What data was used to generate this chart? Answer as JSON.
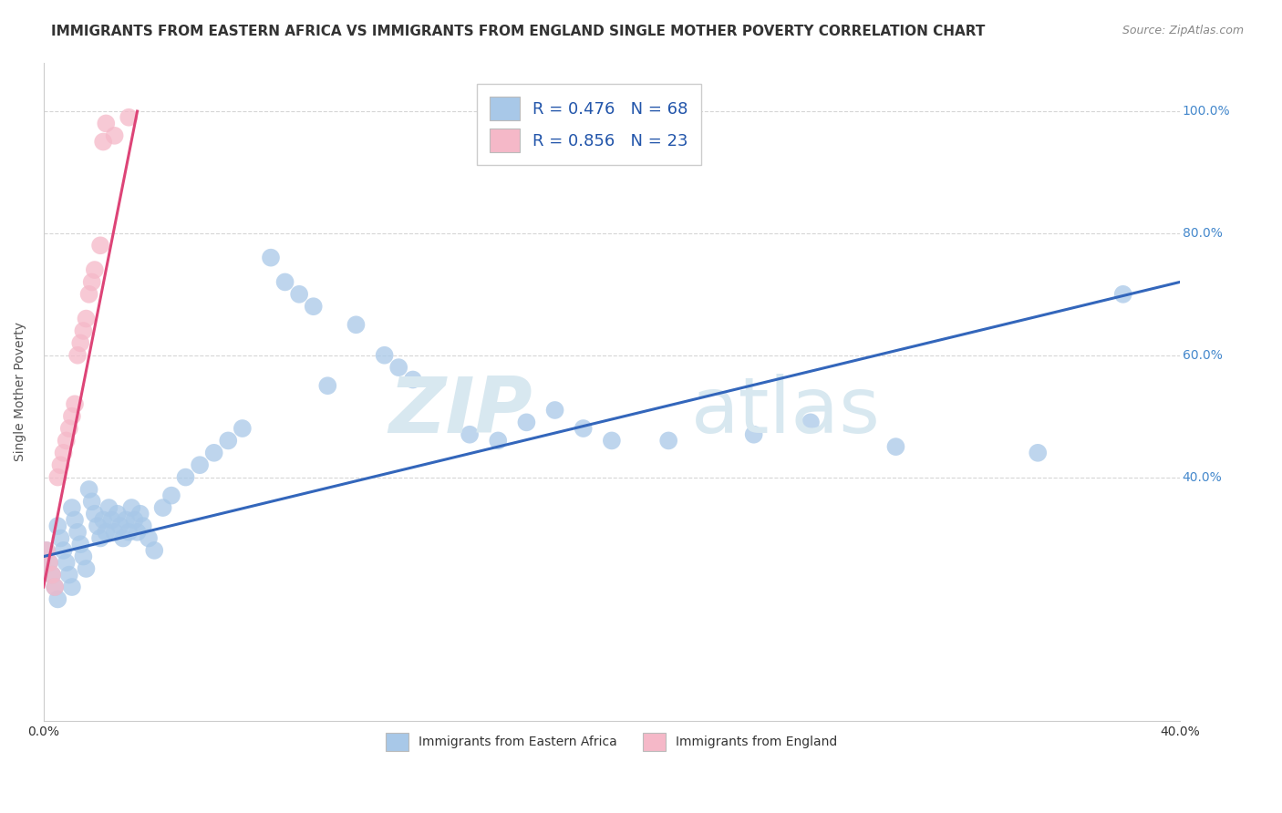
{
  "title": "IMMIGRANTS FROM EASTERN AFRICA VS IMMIGRANTS FROM ENGLAND SINGLE MOTHER POVERTY CORRELATION CHART",
  "source": "Source: ZipAtlas.com",
  "ylabel": "Single Mother Poverty",
  "xlim": [
    0.0,
    0.4
  ],
  "ylim": [
    0.0,
    1.08
  ],
  "blue_color": "#a8c8e8",
  "pink_color": "#f5b8c8",
  "blue_line_color": "#3366bb",
  "pink_line_color": "#dd4477",
  "background_color": "#ffffff",
  "grid_color": "#cccccc",
  "title_fontsize": 11,
  "axis_label_fontsize": 10,
  "tick_fontsize": 10,
  "legend_fontsize": 13,
  "blue_scatter_x": [
    0.001,
    0.002,
    0.003,
    0.004,
    0.005,
    0.005,
    0.006,
    0.007,
    0.008,
    0.009,
    0.01,
    0.01,
    0.011,
    0.012,
    0.013,
    0.014,
    0.015,
    0.016,
    0.017,
    0.018,
    0.019,
    0.02,
    0.021,
    0.022,
    0.023,
    0.024,
    0.025,
    0.026,
    0.027,
    0.028,
    0.029,
    0.03,
    0.031,
    0.032,
    0.033,
    0.034,
    0.035,
    0.037,
    0.039,
    0.042,
    0.045,
    0.05,
    0.055,
    0.06,
    0.065,
    0.07,
    0.08,
    0.085,
    0.09,
    0.095,
    0.1,
    0.11,
    0.12,
    0.125,
    0.13,
    0.15,
    0.16,
    0.17,
    0.18,
    0.19,
    0.2,
    0.22,
    0.25,
    0.27,
    0.3,
    0.35,
    0.38
  ],
  "blue_scatter_y": [
    0.28,
    0.26,
    0.24,
    0.22,
    0.2,
    0.32,
    0.3,
    0.28,
    0.26,
    0.24,
    0.22,
    0.35,
    0.33,
    0.31,
    0.29,
    0.27,
    0.25,
    0.38,
    0.36,
    0.34,
    0.32,
    0.3,
    0.33,
    0.31,
    0.35,
    0.33,
    0.31,
    0.34,
    0.32,
    0.3,
    0.33,
    0.31,
    0.35,
    0.33,
    0.31,
    0.34,
    0.32,
    0.3,
    0.28,
    0.35,
    0.37,
    0.4,
    0.42,
    0.44,
    0.46,
    0.48,
    0.76,
    0.72,
    0.7,
    0.68,
    0.55,
    0.65,
    0.6,
    0.58,
    0.56,
    0.47,
    0.46,
    0.49,
    0.51,
    0.48,
    0.46,
    0.46,
    0.47,
    0.49,
    0.45,
    0.44,
    0.7
  ],
  "pink_scatter_x": [
    0.001,
    0.002,
    0.003,
    0.004,
    0.005,
    0.006,
    0.007,
    0.008,
    0.009,
    0.01,
    0.011,
    0.012,
    0.013,
    0.014,
    0.015,
    0.016,
    0.017,
    0.018,
    0.02,
    0.021,
    0.022,
    0.025,
    0.03
  ],
  "pink_scatter_y": [
    0.28,
    0.26,
    0.24,
    0.22,
    0.4,
    0.42,
    0.44,
    0.46,
    0.48,
    0.5,
    0.52,
    0.6,
    0.62,
    0.64,
    0.66,
    0.7,
    0.72,
    0.74,
    0.78,
    0.95,
    0.98,
    0.96,
    0.99
  ],
  "blue_line_x": [
    0.0,
    0.4
  ],
  "blue_line_y": [
    0.27,
    0.72
  ],
  "pink_line_x": [
    0.0,
    0.033
  ],
  "pink_line_y": [
    0.22,
    1.0
  ]
}
